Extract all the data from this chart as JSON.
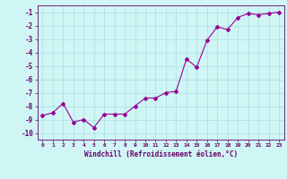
{
  "x": [
    0,
    1,
    2,
    3,
    4,
    5,
    6,
    7,
    8,
    9,
    10,
    11,
    12,
    13,
    14,
    15,
    16,
    17,
    18,
    19,
    20,
    21,
    22,
    23
  ],
  "y": [
    -8.7,
    -8.5,
    -7.8,
    -9.2,
    -9.0,
    -9.6,
    -8.6,
    -8.6,
    -8.6,
    -8.0,
    -7.4,
    -7.4,
    -7.0,
    -6.9,
    -4.5,
    -5.1,
    -3.1,
    -2.1,
    -2.3,
    -1.4,
    -1.1,
    -1.2,
    -1.1,
    -1.0
  ],
  "line_color": "#990099",
  "marker": "D",
  "marker_size": 2,
  "bg_color": "#cff5f5",
  "grid_color": "#aadddd",
  "xlabel": "Windchill (Refroidissement éolien,°C)",
  "xlabel_color": "#660066",
  "tick_color": "#660066",
  "ylim": [
    -10.5,
    -0.5
  ],
  "xlim": [
    -0.5,
    23.5
  ],
  "yticks": [
    -10,
    -9,
    -8,
    -7,
    -6,
    -5,
    -4,
    -3,
    -2,
    -1
  ],
  "xticks": [
    0,
    1,
    2,
    3,
    4,
    5,
    6,
    7,
    8,
    9,
    10,
    11,
    12,
    13,
    14,
    15,
    16,
    17,
    18,
    19,
    20,
    21,
    22,
    23
  ]
}
